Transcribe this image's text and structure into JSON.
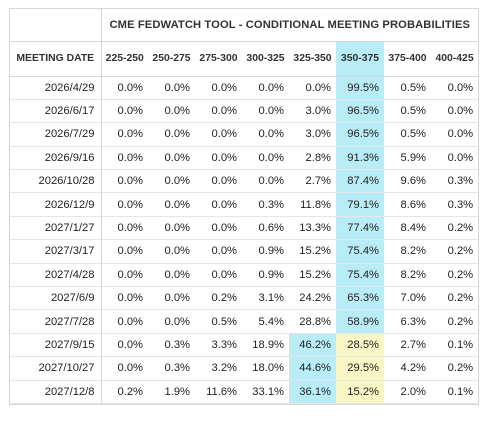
{
  "title": "CME FEDWATCH TOOL - CONDITIONAL MEETING PROBABILITIES",
  "date_header": "MEETING DATE",
  "columns": [
    "225-250",
    "250-275",
    "275-300",
    "300-325",
    "325-350",
    "350-375",
    "375-400",
    "400-425"
  ],
  "highlight_column": "350-375",
  "colors": {
    "current_range": "#b8ecf6",
    "yellow_cell": "#f9f6c6"
  },
  "rows": [
    {
      "date": "2026/4/29",
      "values": [
        "0.0%",
        "0.0%",
        "0.0%",
        "0.0%",
        "0.0%",
        "99.5%",
        "0.5%",
        "0.0%"
      ],
      "cyan": [
        5
      ],
      "yellow": []
    },
    {
      "date": "2026/6/17",
      "values": [
        "0.0%",
        "0.0%",
        "0.0%",
        "0.0%",
        "3.0%",
        "96.5%",
        "0.5%",
        "0.0%"
      ],
      "cyan": [
        5
      ],
      "yellow": []
    },
    {
      "date": "2026/7/29",
      "values": [
        "0.0%",
        "0.0%",
        "0.0%",
        "0.0%",
        "3.0%",
        "96.5%",
        "0.5%",
        "0.0%"
      ],
      "cyan": [
        5
      ],
      "yellow": []
    },
    {
      "date": "2026/9/16",
      "values": [
        "0.0%",
        "0.0%",
        "0.0%",
        "0.0%",
        "2.8%",
        "91.3%",
        "5.9%",
        "0.0%"
      ],
      "cyan": [
        5
      ],
      "yellow": []
    },
    {
      "date": "2026/10/28",
      "values": [
        "0.0%",
        "0.0%",
        "0.0%",
        "0.0%",
        "2.7%",
        "87.4%",
        "9.6%",
        "0.3%"
      ],
      "cyan": [
        5
      ],
      "yellow": []
    },
    {
      "date": "2026/12/9",
      "values": [
        "0.0%",
        "0.0%",
        "0.0%",
        "0.3%",
        "11.8%",
        "79.1%",
        "8.6%",
        "0.3%"
      ],
      "cyan": [
        5
      ],
      "yellow": []
    },
    {
      "date": "2027/1/27",
      "values": [
        "0.0%",
        "0.0%",
        "0.0%",
        "0.6%",
        "13.3%",
        "77.4%",
        "8.4%",
        "0.2%"
      ],
      "cyan": [
        5
      ],
      "yellow": []
    },
    {
      "date": "2027/3/17",
      "values": [
        "0.0%",
        "0.0%",
        "0.0%",
        "0.9%",
        "15.2%",
        "75.4%",
        "8.2%",
        "0.2%"
      ],
      "cyan": [
        5
      ],
      "yellow": []
    },
    {
      "date": "2027/4/28",
      "values": [
        "0.0%",
        "0.0%",
        "0.0%",
        "0.9%",
        "15.2%",
        "75.4%",
        "8.2%",
        "0.2%"
      ],
      "cyan": [
        5
      ],
      "yellow": []
    },
    {
      "date": "2027/6/9",
      "values": [
        "0.0%",
        "0.0%",
        "0.2%",
        "3.1%",
        "24.2%",
        "65.3%",
        "7.0%",
        "0.2%"
      ],
      "cyan": [
        5
      ],
      "yellow": []
    },
    {
      "date": "2027/7/28",
      "values": [
        "0.0%",
        "0.0%",
        "0.5%",
        "5.4%",
        "28.8%",
        "58.9%",
        "6.3%",
        "0.2%"
      ],
      "cyan": [
        5
      ],
      "yellow": []
    },
    {
      "date": "2027/9/15",
      "values": [
        "0.0%",
        "0.3%",
        "3.3%",
        "18.9%",
        "46.2%",
        "28.5%",
        "2.7%",
        "0.1%"
      ],
      "cyan": [
        4
      ],
      "yellow": [
        5
      ]
    },
    {
      "date": "2027/10/27",
      "values": [
        "0.0%",
        "0.3%",
        "3.2%",
        "18.0%",
        "44.6%",
        "29.5%",
        "4.2%",
        "0.2%"
      ],
      "cyan": [
        4
      ],
      "yellow": [
        5
      ]
    },
    {
      "date": "2027/12/8",
      "values": [
        "0.2%",
        "1.9%",
        "11.6%",
        "33.1%",
        "36.1%",
        "15.2%",
        "2.0%",
        "0.1%"
      ],
      "cyan": [
        4
      ],
      "yellow": [
        5
      ]
    }
  ]
}
